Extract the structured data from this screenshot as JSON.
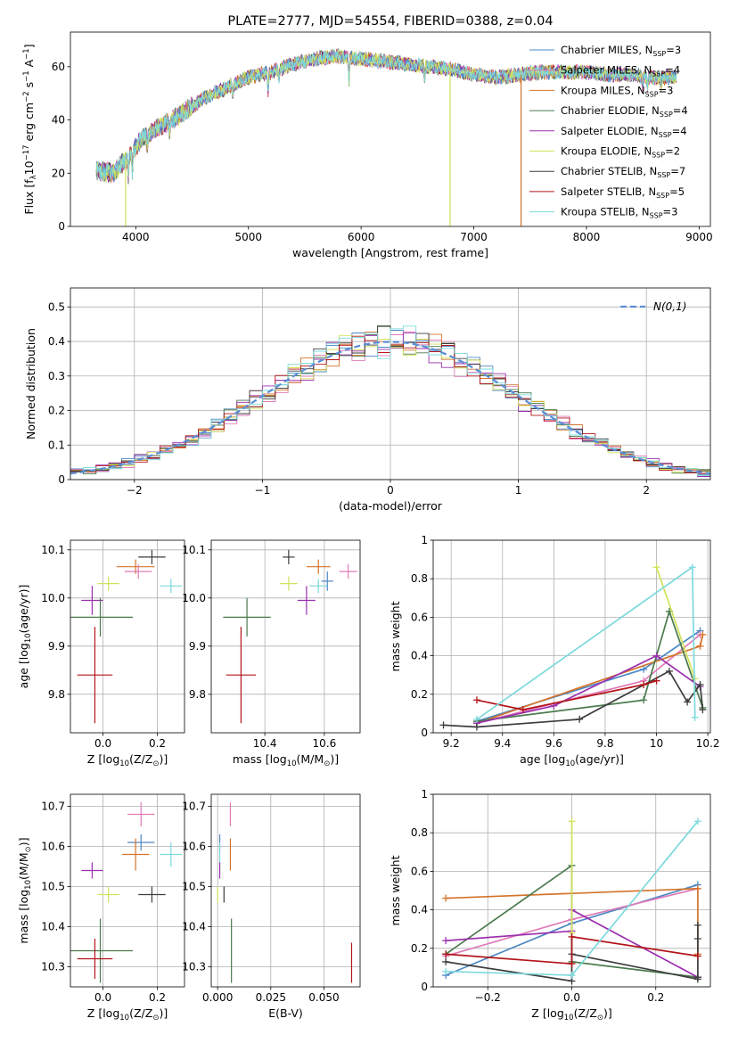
{
  "palette": [
    "#4d88c4",
    "#e07bb9",
    "#d4742b",
    "#4a7a4c",
    "#9b2fae",
    "#d2e25a",
    "#3d3d3d",
    "#b3141a",
    "#7dd9dd"
  ],
  "chart_data": [
    {
      "id": "spectrum",
      "type": "line",
      "title": "PLATE=2777, MJD=54554, FIBERID=0388, z=0.04",
      "xlabel": "wavelength [Angstrom, rest frame]",
      "ylabel": "Flux [f",
      "ylabel_parts": [
        "Flux [f",
        "λ",
        "10",
        "−17",
        " erg cm",
        "−2",
        " s",
        "−1",
        " A",
        "−1",
        "]"
      ],
      "xlim": [
        3420,
        9100
      ],
      "ylim": [
        0,
        73
      ],
      "xticks": [
        4000,
        5000,
        6000,
        7000,
        8000,
        9000
      ],
      "yticks": [
        0,
        20,
        40,
        60
      ],
      "grid": false,
      "legend_position": "top-right",
      "legend": [
        {
          "label": "Chabrier MILES, N",
          "sub": "SSP",
          "eq": "=3"
        },
        {
          "label": "Salpeter MILES, N",
          "sub": "SSP",
          "eq": "=4"
        },
        {
          "label": "Kroupa MILES, N",
          "sub": "SSP",
          "eq": "=3"
        },
        {
          "label": "Chabrier ELODIE, N",
          "sub": "SSP",
          "eq": "=4"
        },
        {
          "label": "Salpeter ELODIE, N",
          "sub": "SSP",
          "eq": "=4"
        },
        {
          "label": "Kroupa ELODIE, N",
          "sub": "SSP",
          "eq": "=2"
        },
        {
          "label": "Chabrier STELIB, N",
          "sub": "SSP",
          "eq": "=7"
        },
        {
          "label": "Salpeter STELIB, N",
          "sub": "SSP",
          "eq": "=5"
        },
        {
          "label": "Kroupa STELIB, N",
          "sub": "SSP",
          "eq": "=3"
        }
      ],
      "continuum": [
        [
          3650,
          21
        ],
        [
          3800,
          20
        ],
        [
          3950,
          27
        ],
        [
          4050,
          33
        ],
        [
          4200,
          37
        ],
        [
          4400,
          42
        ],
        [
          4600,
          48
        ],
        [
          4800,
          52
        ],
        [
          5000,
          56
        ],
        [
          5200,
          58
        ],
        [
          5400,
          61
        ],
        [
          5600,
          63
        ],
        [
          5800,
          64
        ],
        [
          6000,
          63
        ],
        [
          6200,
          62
        ],
        [
          6400,
          61
        ],
        [
          6600,
          60
        ],
        [
          6800,
          59
        ],
        [
          7000,
          57
        ],
        [
          7200,
          56
        ],
        [
          7400,
          57
        ],
        [
          7600,
          58
        ],
        [
          7800,
          58
        ],
        [
          8000,
          58
        ],
        [
          8200,
          57
        ],
        [
          8400,
          57
        ],
        [
          8600,
          56
        ],
        [
          8800,
          56
        ]
      ],
      "absorption_lines": [
        [
          3934,
          0.3
        ],
        [
          3969,
          0.3
        ],
        [
          4102,
          0.12
        ],
        [
          4300,
          0.12
        ],
        [
          4861,
          0.08
        ],
        [
          5175,
          0.12
        ],
        [
          5270,
          0.06
        ],
        [
          5892,
          0.15
        ],
        [
          6563,
          0.08
        ],
        [
          8498,
          0.06
        ],
        [
          8542,
          0.08
        ],
        [
          8662,
          0.06
        ]
      ],
      "drop_lines": [
        {
          "x": 3910,
          "y": 0,
          "series": 5
        },
        {
          "x": 6790,
          "y": 0,
          "series": 5
        },
        {
          "x": 7420,
          "y": 0,
          "series": 2
        }
      ]
    },
    {
      "id": "residuals",
      "type": "histogram",
      "xlabel": "(data-model)/error",
      "ylabel": "Normed distribution",
      "xlim": [
        -2.5,
        2.5
      ],
      "ylim": [
        0,
        0.555
      ],
      "xticks": [
        -2,
        -1,
        0,
        1,
        2
      ],
      "yticks": [
        0.0,
        0.1,
        0.2,
        0.3,
        0.4,
        0.5
      ],
      "grid": true,
      "legend_position": "top-right",
      "legend": [
        {
          "label": "N(0,1)"
        }
      ],
      "bin_width": 0.1,
      "normal": {
        "mean": 0,
        "sigma": 1
      }
    },
    {
      "id": "age_vs_Z",
      "type": "errorbar",
      "xlabel": "Z [log",
      "xlabel_parts": [
        "Z [log",
        "10",
        "(Z/Z",
        "⊙",
        ")]"
      ],
      "ylabel": "age  [log",
      "ylabel_parts": [
        "age  [log",
        "10",
        "(age/yr)]"
      ],
      "xlim": [
        -0.12,
        0.3
      ],
      "ylim": [
        9.72,
        10.12
      ],
      "xticks": [
        0.0,
        0.2
      ],
      "xtick_labels": [
        "0.0",
        "0.2"
      ],
      "yticks": [
        9.8,
        9.9,
        10.0,
        10.1
      ],
      "ytick_labels": [
        "9.8",
        "9.9",
        "10.0",
        "10.1"
      ],
      "grid": true,
      "points": [
        {
          "x": 0.12,
          "y": 10.065,
          "xerr": 0.07,
          "yerr": 0.015,
          "series": 2
        },
        {
          "x": 0.13,
          "y": 10.055,
          "xerr": 0.05,
          "yerr": 0.015,
          "series": 1
        },
        {
          "x": 0.25,
          "y": 10.025,
          "xerr": 0.04,
          "yerr": 0.015,
          "series": 8
        },
        {
          "x": 0.18,
          "y": 10.085,
          "xerr": 0.05,
          "yerr": 0.015,
          "series": 6
        },
        {
          "x": 0.02,
          "y": 10.03,
          "xerr": 0.04,
          "yerr": 0.015,
          "series": 5
        },
        {
          "x": -0.04,
          "y": 9.995,
          "xerr": 0.04,
          "yerr": 0.03,
          "series": 4
        },
        {
          "x": -0.01,
          "y": 9.96,
          "xerr": 0.12,
          "yerr": 0.04,
          "series": 3
        },
        {
          "x": -0.03,
          "y": 9.84,
          "xerr": 0.065,
          "yerr": 0.1,
          "series": 7
        }
      ]
    },
    {
      "id": "age_vs_mass",
      "type": "errorbar",
      "xlabel": "mass [log",
      "xlabel_parts": [
        "mass [log",
        "10",
        "(M/M",
        "⊙",
        ")]"
      ],
      "xlim": [
        10.22,
        10.72
      ],
      "ylim": [
        9.72,
        10.12
      ],
      "xticks": [
        10.4,
        10.6
      ],
      "xtick_labels": [
        "10.4",
        "10.6"
      ],
      "yticks": [
        9.8,
        9.9,
        10.0,
        10.1
      ],
      "ytick_labels": [
        "9.8",
        "9.9",
        "10.0",
        "10.1"
      ],
      "grid": true,
      "points": [
        {
          "x": 10.58,
          "y": 10.065,
          "xerr": 0.04,
          "yerr": 0.015,
          "series": 2
        },
        {
          "x": 10.68,
          "y": 10.055,
          "xerr": 0.03,
          "yerr": 0.015,
          "series": 1
        },
        {
          "x": 10.58,
          "y": 10.025,
          "xerr": 0.03,
          "yerr": 0.015,
          "series": 8
        },
        {
          "x": 10.61,
          "y": 10.035,
          "xerr": 0.02,
          "yerr": 0.02,
          "series": 0
        },
        {
          "x": 10.48,
          "y": 10.085,
          "xerr": 0.02,
          "yerr": 0.015,
          "series": 6
        },
        {
          "x": 10.48,
          "y": 10.03,
          "xerr": 0.03,
          "yerr": 0.015,
          "series": 5
        },
        {
          "x": 10.54,
          "y": 9.995,
          "xerr": 0.03,
          "yerr": 0.03,
          "series": 4
        },
        {
          "x": 10.34,
          "y": 9.96,
          "xerr": 0.08,
          "yerr": 0.04,
          "series": 3
        },
        {
          "x": 10.32,
          "y": 9.84,
          "xerr": 0.05,
          "yerr": 0.1,
          "series": 7
        }
      ]
    },
    {
      "id": "weight_vs_age",
      "type": "line",
      "xlabel": "age  [log",
      "xlabel_parts": [
        "age  [log",
        "10",
        "(age/yr)]"
      ],
      "ylabel": "mass weight",
      "xlim": [
        9.13,
        10.21
      ],
      "ylim": [
        0,
        1.0
      ],
      "xticks": [
        9.2,
        9.4,
        9.6,
        9.8,
        10.0,
        10.2
      ],
      "yticks": [
        0.0,
        0.2,
        0.4,
        0.6,
        0.8,
        1.0
      ],
      "grid": true,
      "series": [
        {
          "color": 0,
          "x": [
            9.3,
            9.95,
            10.17
          ],
          "y": [
            0.06,
            0.33,
            0.53
          ]
        },
        {
          "color": 1,
          "x": [
            9.3,
            9.95,
            10.17
          ],
          "y": [
            0.05,
            0.27,
            0.51
          ]
        },
        {
          "color": 2,
          "x": [
            9.3,
            10.17,
            10.18
          ],
          "y": [
            0.05,
            0.45,
            0.51
          ]
        },
        {
          "color": 3,
          "x": [
            9.3,
            9.95,
            10.05,
            10.18
          ],
          "y": [
            0.06,
            0.17,
            0.63,
            0.13
          ]
        },
        {
          "color": 4,
          "x": [
            9.3,
            9.6,
            10.0,
            10.17
          ],
          "y": [
            0.05,
            0.14,
            0.4,
            0.24
          ]
        },
        {
          "color": 5,
          "x": [
            10.0,
            10.15
          ],
          "y": [
            0.86,
            0.28
          ]
        },
        {
          "color": 6,
          "x": [
            9.17,
            9.3,
            9.7,
            10.05,
            10.12,
            10.17,
            10.18
          ],
          "y": [
            0.04,
            0.03,
            0.07,
            0.32,
            0.16,
            0.25,
            0.12
          ]
        },
        {
          "color": 7,
          "x": [
            9.3,
            9.48,
            9.95,
            10.0
          ],
          "y": [
            0.17,
            0.12,
            0.25,
            0.27
          ]
        },
        {
          "color": 8,
          "x": [
            9.3,
            10.14,
            10.15
          ],
          "y": [
            0.07,
            0.86,
            0.08
          ]
        }
      ]
    },
    {
      "id": "mass_vs_Z",
      "type": "errorbar",
      "xlabel": "Z [log",
      "xlabel_parts": [
        "Z [log",
        "10",
        "(Z/Z",
        "⊙",
        ")]"
      ],
      "ylabel": "mass [log",
      "ylabel_parts": [
        "mass [log",
        "10",
        "(M/M",
        "⊙",
        ")]"
      ],
      "xlim": [
        -0.12,
        0.3
      ],
      "ylim": [
        10.25,
        10.73
      ],
      "xticks": [
        0.0,
        0.2
      ],
      "xtick_labels": [
        "0.0",
        "0.2"
      ],
      "yticks": [
        10.3,
        10.4,
        10.5,
        10.6,
        10.7
      ],
      "ytick_labels": [
        "10.3",
        "10.4",
        "10.5",
        "10.6",
        "10.7"
      ],
      "grid": true,
      "points": [
        {
          "x": 0.14,
          "y": 10.68,
          "xerr": 0.05,
          "yerr": 0.03,
          "series": 1
        },
        {
          "x": 0.14,
          "y": 10.61,
          "xerr": 0.05,
          "yerr": 0.02,
          "series": 0
        },
        {
          "x": 0.12,
          "y": 10.58,
          "xerr": 0.05,
          "yerr": 0.04,
          "series": 2
        },
        {
          "x": 0.25,
          "y": 10.58,
          "xerr": 0.04,
          "yerr": 0.03,
          "series": 8
        },
        {
          "x": -0.04,
          "y": 10.54,
          "xerr": 0.04,
          "yerr": 0.02,
          "series": 4
        },
        {
          "x": 0.02,
          "y": 10.48,
          "xerr": 0.04,
          "yerr": 0.02,
          "series": 5
        },
        {
          "x": 0.18,
          "y": 10.48,
          "xerr": 0.05,
          "yerr": 0.02,
          "series": 6
        },
        {
          "x": -0.01,
          "y": 10.34,
          "xerr": 0.12,
          "yerr": 0.08,
          "series": 3
        },
        {
          "x": -0.03,
          "y": 10.32,
          "xerr": 0.065,
          "yerr": 0.05,
          "series": 7
        }
      ]
    },
    {
      "id": "mass_vs_EBV",
      "type": "errorbar",
      "xlabel": "E(B-V)",
      "xlim": [
        -0.003,
        0.067
      ],
      "ylim": [
        10.25,
        10.73
      ],
      "xticks": [
        0.0,
        0.025,
        0.05
      ],
      "xtick_labels": [
        "0.000",
        "0.025",
        "0.050"
      ],
      "yticks": [
        10.3,
        10.4,
        10.5,
        10.6,
        10.7
      ],
      "ytick_labels": [
        "10.3",
        "10.4",
        "10.5",
        "10.6",
        "10.7"
      ],
      "grid": true,
      "points": [
        {
          "x": 0.006,
          "y": 10.68,
          "xerr": 0,
          "yerr": 0.03,
          "series": 1
        },
        {
          "x": 0.001,
          "y": 10.61,
          "xerr": 0,
          "yerr": 0.02,
          "series": 0
        },
        {
          "x": 0.006,
          "y": 10.58,
          "xerr": 0,
          "yerr": 0.04,
          "series": 2
        },
        {
          "x": 0.001,
          "y": 10.58,
          "xerr": 0,
          "yerr": 0.03,
          "series": 8
        },
        {
          "x": 0.001,
          "y": 10.54,
          "xerr": 0,
          "yerr": 0.02,
          "series": 4
        },
        {
          "x": 0.0,
          "y": 10.48,
          "xerr": 0,
          "yerr": 0.02,
          "series": 5
        },
        {
          "x": 0.003,
          "y": 10.48,
          "xerr": 0,
          "yerr": 0.02,
          "series": 6
        },
        {
          "x": 0.0065,
          "y": 10.34,
          "xerr": 0,
          "yerr": 0.08,
          "series": 3
        },
        {
          "x": 0.063,
          "y": 10.31,
          "xerr": 0,
          "yerr": 0.05,
          "series": 7
        }
      ]
    },
    {
      "id": "weight_vs_Z",
      "type": "line",
      "xlabel": "Z [log",
      "xlabel_parts": [
        "Z [log",
        "10",
        "(Z/Z",
        "⊙",
        ")]"
      ],
      "ylabel": "mass weight",
      "xlim": [
        -0.33,
        0.33
      ],
      "ylim": [
        0,
        1.0
      ],
      "xticks": [
        -0.2,
        0.0,
        0.2
      ],
      "xtick_labels": [
        "−0.2",
        "0.0",
        "0.2"
      ],
      "yticks": [
        0.0,
        0.2,
        0.4,
        0.6,
        0.8,
        1.0
      ],
      "grid": true,
      "series": [
        {
          "color": 0,
          "x": [
            -0.3,
            0.0,
            0.3
          ],
          "y": [
            0.06,
            0.33,
            0.53
          ]
        },
        {
          "color": 1,
          "x": [
            -0.3,
            0.0,
            0.3
          ],
          "y": [
            0.16,
            0.35,
            0.51
          ]
        },
        {
          "color": 2,
          "x": [
            -0.3,
            0.3,
            0.3
          ],
          "y": [
            0.46,
            0.51,
            0.17
          ]
        },
        {
          "color": 3,
          "x": [
            -0.3,
            0.0,
            0.0,
            0.3
          ],
          "y": [
            0.17,
            0.63,
            0.13,
            0.05
          ]
        },
        {
          "color": 4,
          "x": [
            -0.3,
            0.0,
            0.0,
            0.3
          ],
          "y": [
            0.24,
            0.29,
            0.4,
            0.05
          ]
        },
        {
          "color": 5,
          "x": [
            0.0,
            0.0
          ],
          "y": [
            0.86,
            0.28
          ]
        },
        {
          "color": 6,
          "x": [
            -0.3,
            0.0,
            0.0,
            0.3,
            0.3,
            0.3,
            0.3
          ],
          "y": [
            0.13,
            0.03,
            0.17,
            0.04,
            0.32,
            0.25,
            0.05
          ]
        },
        {
          "color": 7,
          "x": [
            -0.3,
            0.0,
            0.0,
            0.3
          ],
          "y": [
            0.17,
            0.12,
            0.26,
            0.16
          ]
        },
        {
          "color": 8,
          "x": [
            -0.3,
            0.0,
            0.3
          ],
          "y": [
            0.08,
            0.06,
            0.86
          ]
        }
      ]
    }
  ]
}
